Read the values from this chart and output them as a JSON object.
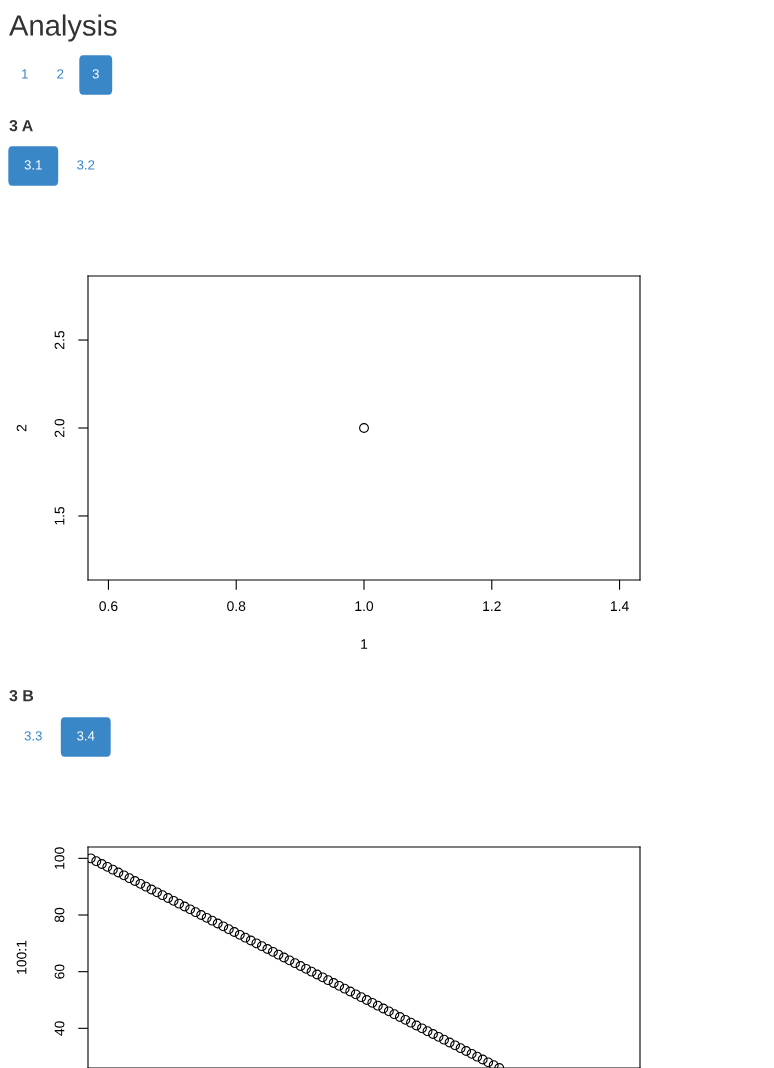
{
  "chart_data": [
    {
      "type": "other",
      "title": "Analysis",
      "categories": [
        "1",
        "2",
        "3"
      ],
      "colors": [
        "#ffffff",
        "#ffffff",
        "#3a87c8"
      ]
    },
    {
      "type": "other",
      "title": "3 A",
      "categories": [
        "3.1",
        "3.2"
      ],
      "colors": [
        "#3a87c8",
        "#ffffff"
      ]
    },
    {
      "type": "scatter",
      "xlabel": "1",
      "ylabel": "2",
      "x": [
        1
      ],
      "values": [
        2
      ],
      "xlim": [
        0.568,
        1.432
      ],
      "ylim": [
        1.136,
        2.864
      ],
      "xticks": [
        0.6,
        0.8,
        {
          "value": 1,
          "label": "1.0"
        },
        1.2,
        1.4
      ],
      "yticks": [
        1.5,
        {
          "value": 2,
          "label": "2.0"
        },
        2.5
      ],
      "marker": "circle",
      "color": "#000000"
    },
    {
      "type": "other",
      "title": "3 B",
      "categories": [
        "3.3",
        "3.4"
      ],
      "colors": [
        "#ffffff",
        "#3a87c8"
      ]
    },
    {
      "type": "scatter",
      "ylabel": "100:1",
      "categories": [
        null,
        null,
        null,
        null,
        null,
        null,
        null,
        null,
        null,
        null,
        null,
        null,
        null,
        null,
        null,
        null,
        null,
        null,
        null,
        null,
        null,
        null,
        null,
        null,
        null,
        null,
        null,
        null,
        null,
        null,
        null,
        null,
        null,
        null,
        null,
        null,
        null,
        null,
        null,
        null,
        null,
        null,
        null,
        null,
        null,
        null,
        null,
        null,
        null,
        null,
        null,
        null,
        null,
        null,
        null,
        null,
        null,
        null,
        null,
        null,
        null,
        null,
        null,
        null,
        null,
        null,
        null,
        null,
        null,
        null,
        null,
        null,
        null,
        null,
        null,
        null,
        null,
        null,
        null,
        null,
        null,
        null,
        null,
        null,
        null,
        null,
        null,
        null,
        null,
        null,
        null,
        null,
        null,
        null,
        null,
        null,
        null,
        null,
        null,
        null
      ],
      "values": [
        100,
        99,
        98,
        97,
        96,
        95,
        94,
        93,
        92,
        91,
        90,
        89,
        88,
        87,
        86,
        85,
        84,
        83,
        82,
        81,
        80,
        79,
        78,
        77,
        76,
        75,
        74,
        73,
        72,
        71,
        70,
        69,
        68,
        67,
        66,
        65,
        64,
        63,
        62,
        61,
        60,
        59,
        58,
        57,
        56,
        55,
        54,
        53,
        52,
        51,
        50,
        49,
        48,
        47,
        46,
        45,
        44,
        43,
        42,
        41,
        40,
        39,
        38,
        37,
        36,
        35,
        34,
        33,
        32,
        31,
        30,
        29,
        28,
        27,
        26,
        null,
        null,
        null,
        null,
        null,
        null,
        null,
        null,
        null,
        null,
        null,
        null,
        null,
        null,
        null,
        null,
        null,
        null,
        null,
        null,
        null,
        null,
        null,
        null,
        null
      ],
      "ylim": [
        26,
        104
      ],
      "yticks": [
        40,
        60,
        80,
        100
      ],
      "tick_labels": "y",
      "marker": "circle",
      "color": "#000000"
    }
  ]
}
